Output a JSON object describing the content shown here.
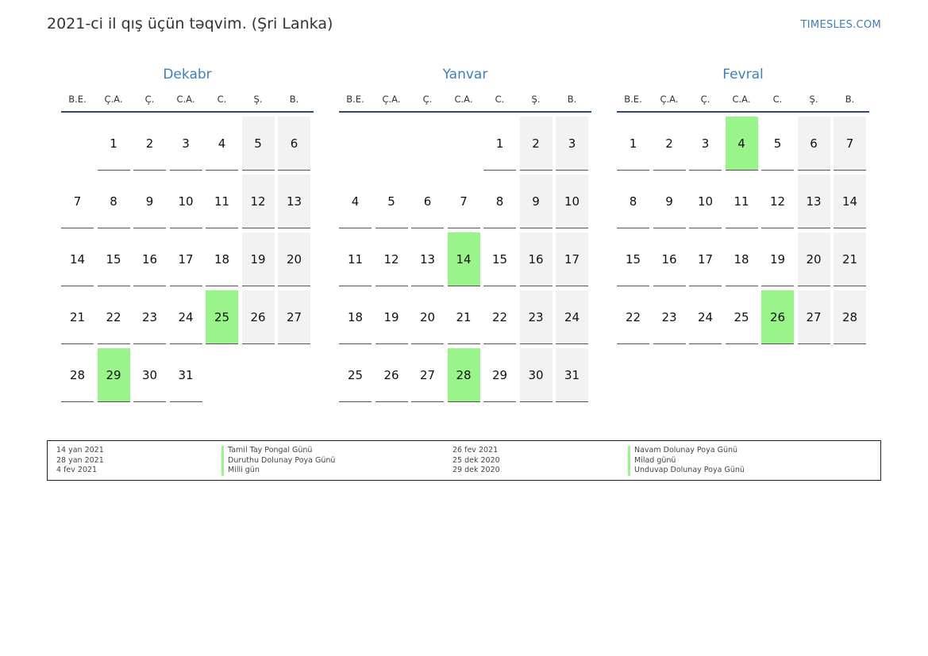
{
  "header": {
    "title": "2021-ci il qış üçün təqvim. (Şri Lanka)",
    "brand": "TIMESLES.COM"
  },
  "weekdays": [
    "B.E.",
    "Ç.A.",
    "Ç.",
    "C.A.",
    "C.",
    "Ş.",
    "B."
  ],
  "colors": {
    "accent": "#3c7fc1",
    "holiday": "#99f589",
    "weekend": "#f2f2f2",
    "rule": "#2f4a6b"
  },
  "months": [
    {
      "name": "Dekabr",
      "start_offset": 1,
      "days_in_month": 31,
      "holidays": [
        25,
        29
      ]
    },
    {
      "name": "Yanvar",
      "start_offset": 4,
      "days_in_month": 31,
      "holidays": [
        14,
        28
      ]
    },
    {
      "name": "Fevral",
      "start_offset": 0,
      "days_in_month": 28,
      "holidays": [
        4,
        26
      ]
    }
  ],
  "legend": {
    "left": [
      {
        "date": "14 yan 2021",
        "name": "Tamil Tay Pongal Günü"
      },
      {
        "date": "28 yan 2021",
        "name": "Duruthu Dolunay Poya Günü"
      },
      {
        "date": "4 fev 2021",
        "name": "Milli gün"
      }
    ],
    "right": [
      {
        "date": "26 fev 2021",
        "name": "Navam Dolunay Poya Günü"
      },
      {
        "date": "25 dek 2020",
        "name": "Milad günü"
      },
      {
        "date": "29 dek 2020",
        "name": "Unduvap Dolunay Poya Günü"
      }
    ]
  }
}
